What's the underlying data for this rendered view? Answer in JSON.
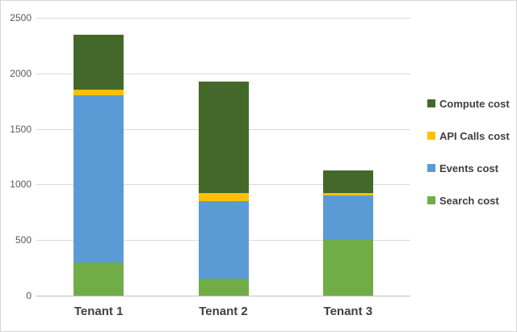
{
  "chart_data": {
    "type": "bar",
    "stacked": true,
    "title": "",
    "categories": [
      "Tenant 1",
      "Tenant 2",
      "Tenant 3"
    ],
    "series": [
      {
        "name": "Search cost",
        "color": "#70AD47",
        "values": [
          300,
          150,
          500
        ]
      },
      {
        "name": "Events cost",
        "color": "#5B9BD5",
        "values": [
          1500,
          700,
          400
        ]
      },
      {
        "name": "API Calls cost",
        "color": "#FFC000",
        "values": [
          50,
          75,
          25
        ]
      },
      {
        "name": "Compute cost",
        "color": "#44682A",
        "values": [
          500,
          1000,
          200
        ]
      }
    ],
    "totals": [
      2350,
      1925,
      1125
    ],
    "ylim": [
      0,
      2500
    ],
    "yticks": [
      0,
      500,
      1000,
      1500,
      2000,
      2500
    ],
    "grid": "horizontal",
    "legend_position": "right",
    "legend_order": [
      "Compute cost",
      "API Calls cost",
      "Events cost",
      "Search cost"
    ],
    "colors": {
      "gridline": "#d9d9d9",
      "axis_line": "#bfbfbf",
      "tick_text": "#595959",
      "label_text": "#404040",
      "background": "#ffffff"
    }
  }
}
